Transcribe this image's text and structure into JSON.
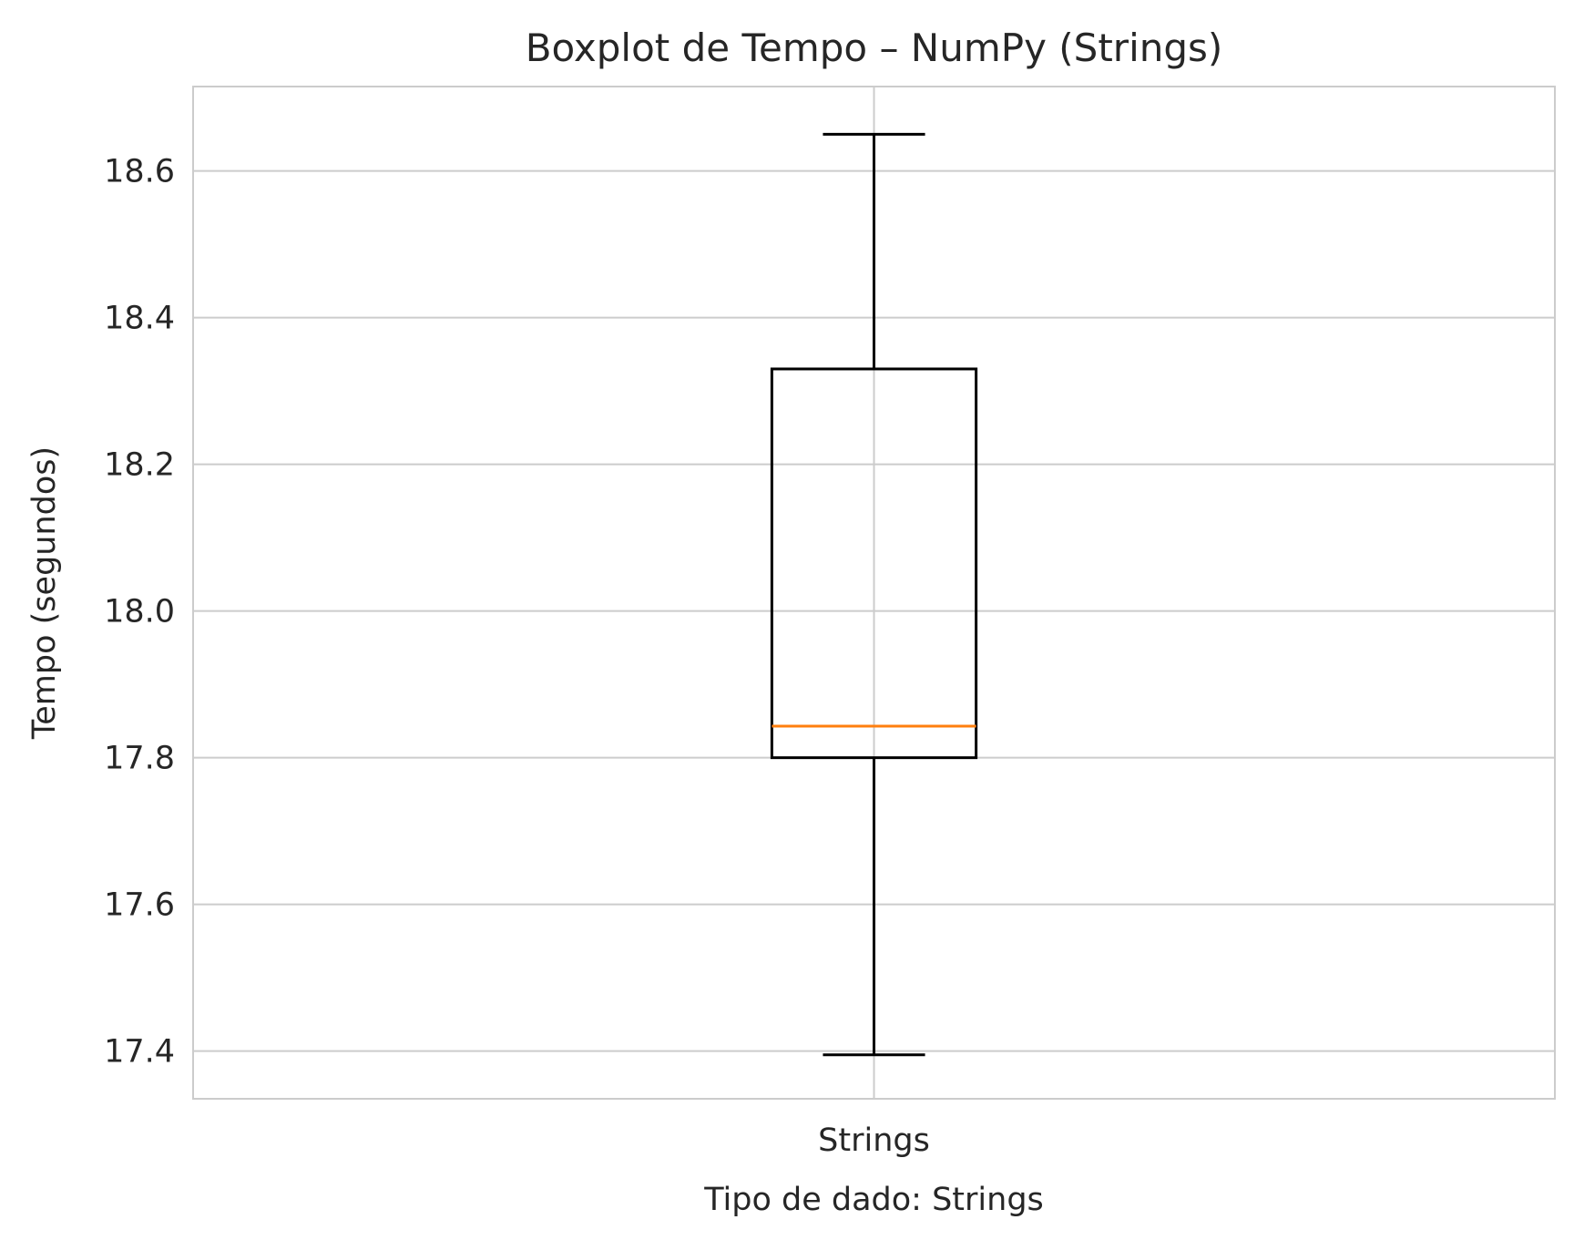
{
  "chart_data": {
    "type": "box",
    "title": "Boxplot de Tempo – NumPy (Strings)",
    "xlabel": "Tipo de dado: Strings",
    "ylabel": "Tempo (segundos)",
    "categories": [
      "Strings"
    ],
    "boxes": [
      {
        "category": "Strings",
        "whisker_low": 17.395,
        "q1": 17.8,
        "median": 17.843,
        "q3": 18.33,
        "whisker_high": 18.65
      }
    ],
    "ylim": [
      17.335,
      18.715
    ],
    "yticks": [
      17.4,
      17.6,
      17.8,
      18.0,
      18.2,
      18.4,
      18.6
    ],
    "ytick_labels": [
      "17.4",
      "17.6",
      "17.8",
      "18.0",
      "18.2",
      "18.4",
      "18.6"
    ],
    "grid": true,
    "colors": {
      "box": "#000000",
      "median": "#ff7f0e",
      "grid": "#cccccc",
      "frame": "#cccccc",
      "text": "#262626"
    }
  }
}
